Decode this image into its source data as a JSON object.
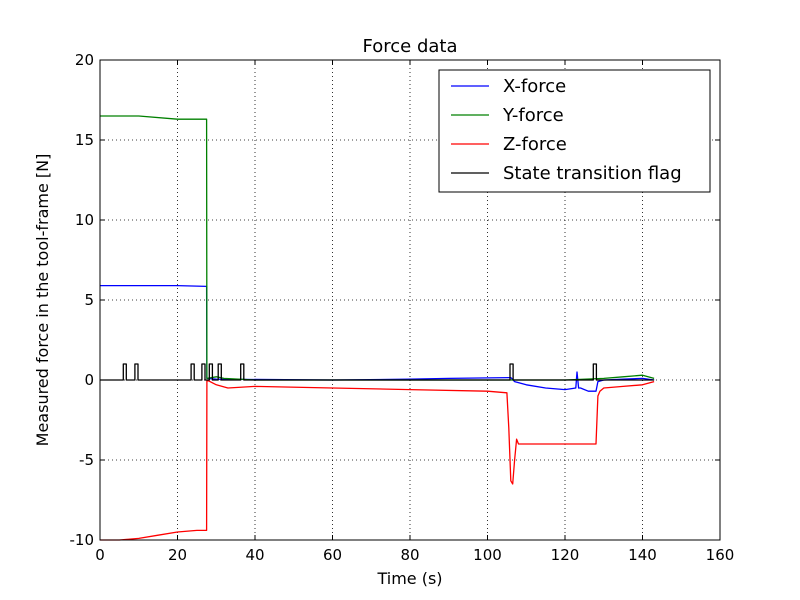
{
  "chart_data": {
    "type": "line",
    "title": "Force data",
    "xlabel": "Time (s)",
    "ylabel": "Measured force in the tool-frame [N]",
    "xlim": [
      0,
      160
    ],
    "ylim": [
      -10,
      20
    ],
    "xticks": [
      0,
      20,
      40,
      60,
      80,
      100,
      120,
      140,
      160
    ],
    "yticks": [
      -10,
      -5,
      0,
      5,
      10,
      15,
      20
    ],
    "grid": true,
    "legend_position": "top-right",
    "series": [
      {
        "name": "X-force",
        "color": "#0000ff",
        "x": [
          0,
          10,
          20,
          27.5,
          27.6,
          30,
          60,
          80,
          90,
          106,
          107,
          110,
          115,
          120,
          122.8,
          123.1,
          123.5,
          124,
          126,
          128,
          128.5,
          130,
          135,
          140,
          143
        ],
        "y": [
          5.9,
          5.9,
          5.9,
          5.85,
          0.1,
          0.05,
          0.0,
          0.05,
          0.1,
          0.15,
          -0.1,
          -0.3,
          -0.5,
          -0.6,
          -0.5,
          0.5,
          -0.5,
          -0.5,
          -0.7,
          -0.7,
          -0.1,
          0.0,
          0.05,
          0.1,
          0.0
        ]
      },
      {
        "name": "Y-force",
        "color": "#008000",
        "x": [
          0,
          10,
          20,
          27.5,
          27.6,
          30,
          32,
          40,
          60,
          80,
          100,
          106,
          120,
          130,
          135,
          140,
          143
        ],
        "y": [
          16.5,
          16.5,
          16.3,
          16.3,
          0.1,
          0.2,
          0.1,
          0.0,
          0.0,
          0.0,
          0.0,
          0.0,
          0.0,
          0.1,
          0.2,
          0.3,
          0.1
        ]
      },
      {
        "name": "Z-force",
        "color": "#ff0000",
        "x": [
          0,
          5,
          10,
          15,
          20,
          25,
          27.5,
          27.6,
          30,
          33,
          40,
          60,
          80,
          100,
          105,
          105.5,
          106,
          106.5,
          107,
          107.5,
          108,
          110,
          120,
          124,
          128,
          128.5,
          129,
          130,
          135,
          140,
          143
        ],
        "y": [
          -10.0,
          -10.0,
          -9.9,
          -9.7,
          -9.5,
          -9.4,
          -9.4,
          0.0,
          -0.3,
          -0.5,
          -0.4,
          -0.5,
          -0.6,
          -0.7,
          -0.8,
          -3.0,
          -6.3,
          -6.5,
          -5.0,
          -3.7,
          -4.0,
          -4.0,
          -4.0,
          -4.0,
          -4.0,
          -1.0,
          -0.7,
          -0.5,
          -0.4,
          -0.3,
          -0.1
        ]
      },
      {
        "name": "State transition flag",
        "color": "#000000",
        "x": [
          0,
          6,
          6,
          6.8,
          6.8,
          9,
          9,
          9.8,
          9.8,
          23.5,
          23.5,
          24.3,
          24.3,
          26.3,
          26.3,
          27.1,
          27.1,
          28.2,
          28.2,
          29,
          29,
          30.5,
          30.5,
          31.3,
          31.3,
          36.3,
          36.3,
          37.1,
          37.1,
          105.8,
          105.8,
          106.6,
          106.6,
          127.3,
          127.3,
          128.1,
          128.1,
          143
        ],
        "y": [
          0,
          0,
          1,
          1,
          0,
          0,
          1,
          1,
          0,
          0,
          1,
          1,
          0,
          0,
          1,
          1,
          0,
          0,
          1,
          1,
          0,
          0,
          1,
          1,
          0,
          0,
          1,
          1,
          0,
          0,
          1,
          1,
          0,
          0,
          1,
          1,
          0,
          0
        ]
      }
    ]
  }
}
